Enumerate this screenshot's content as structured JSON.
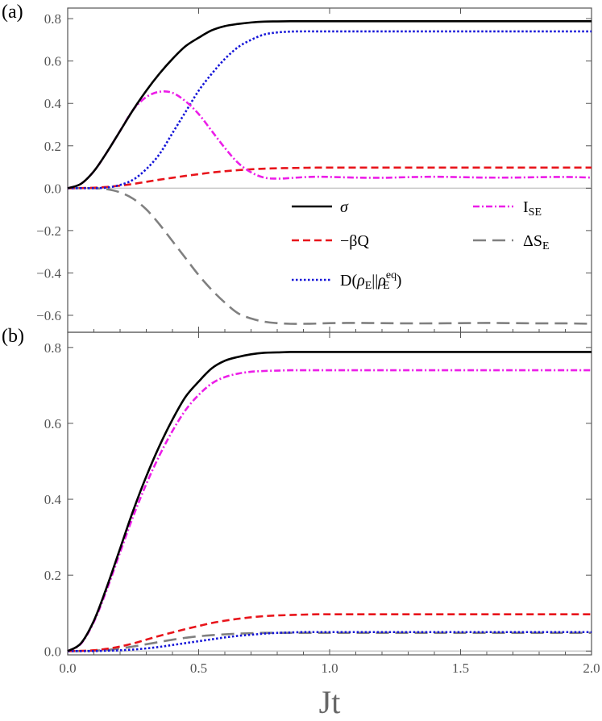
{
  "chart_data": [
    {
      "type": "line",
      "panel_label": "(a)",
      "xlim": [
        0,
        2.0
      ],
      "ylim": [
        -0.68,
        0.85
      ],
      "yticks": [
        -0.6,
        -0.4,
        -0.2,
        0.0,
        0.2,
        0.4,
        0.6,
        0.8
      ],
      "ytick_labels": [
        "−0.6",
        "−0.4",
        "−0.2",
        "0.0",
        "0.2",
        "0.4",
        "0.6",
        "0.8"
      ],
      "xticks": [
        0.0,
        0.5,
        1.0,
        1.5,
        2.0
      ],
      "x": [
        0,
        0.05,
        0.1,
        0.15,
        0.2,
        0.25,
        0.3,
        0.35,
        0.4,
        0.45,
        0.5,
        0.55,
        0.6,
        0.65,
        0.7,
        0.75,
        0.8,
        0.85,
        0.9,
        0.95,
        1.0,
        1.1,
        1.2,
        1.3,
        1.4,
        1.5,
        1.6,
        1.7,
        1.8,
        1.9,
        2.0
      ],
      "series": [
        {
          "key": "sigma",
          "name": "σ",
          "color": "#000000",
          "dash": "",
          "values": [
            0,
            0.02,
            0.08,
            0.17,
            0.27,
            0.37,
            0.46,
            0.54,
            0.61,
            0.67,
            0.71,
            0.745,
            0.765,
            0.775,
            0.782,
            0.786,
            0.787,
            0.788,
            0.788,
            0.788,
            0.788,
            0.788,
            0.788,
            0.788,
            0.788,
            0.788,
            0.788,
            0.788,
            0.788,
            0.788,
            0.788
          ]
        },
        {
          "key": "beta_q",
          "name": "−βQ",
          "color": "#e8141b",
          "dash": "9,5",
          "values": [
            0,
            0.0005,
            0.002,
            0.006,
            0.012,
            0.02,
            0.03,
            0.04,
            0.049,
            0.058,
            0.066,
            0.074,
            0.08,
            0.085,
            0.089,
            0.092,
            0.094,
            0.095,
            0.096,
            0.097,
            0.097,
            0.097,
            0.097,
            0.097,
            0.097,
            0.097,
            0.097,
            0.097,
            0.097,
            0.097,
            0.097
          ]
        },
        {
          "key": "ise",
          "name": "I",
          "sub": "SE",
          "color": "#ec1ee8",
          "dash": "8,3,2,3",
          "values": [
            0,
            0.02,
            0.08,
            0.17,
            0.27,
            0.37,
            0.43,
            0.455,
            0.45,
            0.41,
            0.35,
            0.27,
            0.19,
            0.12,
            0.075,
            0.05,
            0.045,
            0.048,
            0.052,
            0.054,
            0.053,
            0.05,
            0.049,
            0.052,
            0.054,
            0.052,
            0.05,
            0.05,
            0.052,
            0.053,
            0.05
          ]
        },
        {
          "key": "delta_se",
          "name": "ΔS",
          "sub": "E",
          "color": "#808080",
          "dash": "16,8",
          "values": [
            0,
            0,
            0,
            -0.005,
            -0.02,
            -0.05,
            -0.1,
            -0.17,
            -0.25,
            -0.33,
            -0.41,
            -0.48,
            -0.54,
            -0.59,
            -0.615,
            -0.63,
            -0.637,
            -0.64,
            -0.64,
            -0.639,
            -0.637,
            -0.636,
            -0.637,
            -0.638,
            -0.638,
            -0.637,
            -0.636,
            -0.637,
            -0.638,
            -0.638,
            -0.64
          ]
        },
        {
          "key": "d_rel",
          "name": "D(ρE||ρEeq)",
          "color": "#1414d8",
          "dash": "2.5,2.5",
          "values": [
            0,
            0,
            0,
            0.003,
            0.015,
            0.04,
            0.09,
            0.16,
            0.26,
            0.36,
            0.46,
            0.54,
            0.61,
            0.665,
            0.7,
            0.725,
            0.735,
            0.739,
            0.74,
            0.74,
            0.74,
            0.74,
            0.74,
            0.74,
            0.74,
            0.74,
            0.74,
            0.74,
            0.74,
            0.74,
            0.74
          ]
        }
      ]
    },
    {
      "type": "line",
      "panel_label": "(b)",
      "xlim": [
        0,
        2.0
      ],
      "ylim": [
        -0.01,
        0.84
      ],
      "yticks": [
        0.0,
        0.2,
        0.4,
        0.6,
        0.8
      ],
      "ytick_labels": [
        "0.0",
        "0.2",
        "0.4",
        "0.6",
        "0.8"
      ],
      "xticks": [
        0.0,
        0.5,
        1.0,
        1.5,
        2.0
      ],
      "xtick_labels": [
        "0.0",
        "0.5",
        "1.0",
        "1.5",
        "2.0"
      ],
      "xlabel": "Jt",
      "x": [
        0,
        0.05,
        0.1,
        0.15,
        0.2,
        0.25,
        0.3,
        0.35,
        0.4,
        0.45,
        0.5,
        0.55,
        0.6,
        0.65,
        0.7,
        0.75,
        0.8,
        0.85,
        0.9,
        0.95,
        1.0,
        1.1,
        1.2,
        1.3,
        1.4,
        1.5,
        1.6,
        1.7,
        1.8,
        1.9,
        2.0
      ],
      "series": [
        {
          "key": "sigma",
          "name": "σ",
          "color": "#000000",
          "dash": "",
          "values": [
            0,
            0.02,
            0.08,
            0.17,
            0.27,
            0.37,
            0.46,
            0.54,
            0.61,
            0.67,
            0.71,
            0.745,
            0.765,
            0.775,
            0.782,
            0.786,
            0.787,
            0.788,
            0.788,
            0.788,
            0.788,
            0.788,
            0.788,
            0.788,
            0.788,
            0.788,
            0.788,
            0.788,
            0.788,
            0.788,
            0.788
          ]
        },
        {
          "key": "beta_q",
          "name": "−βQ",
          "color": "#e8141b",
          "dash": "9,5",
          "values": [
            0,
            0.0005,
            0.002,
            0.006,
            0.012,
            0.02,
            0.03,
            0.04,
            0.049,
            0.058,
            0.066,
            0.074,
            0.08,
            0.085,
            0.089,
            0.092,
            0.094,
            0.095,
            0.096,
            0.097,
            0.097,
            0.097,
            0.097,
            0.097,
            0.097,
            0.097,
            0.097,
            0.097,
            0.097,
            0.097,
            0.097
          ]
        },
        {
          "key": "ise",
          "name": "I",
          "sub": "SE",
          "color": "#ec1ee8",
          "dash": "8,3,2,3",
          "values": [
            0,
            0.019,
            0.077,
            0.163,
            0.26,
            0.355,
            0.44,
            0.515,
            0.58,
            0.635,
            0.675,
            0.705,
            0.722,
            0.731,
            0.736,
            0.738,
            0.739,
            0.74,
            0.74,
            0.74,
            0.74,
            0.74,
            0.74,
            0.74,
            0.74,
            0.74,
            0.74,
            0.74,
            0.74,
            0.74,
            0.74
          ]
        },
        {
          "key": "delta_se",
          "name": "ΔS",
          "sub": "E",
          "color": "#808080",
          "dash": "16,8",
          "values": [
            0,
            0,
            0.001,
            0.003,
            0.007,
            0.012,
            0.018,
            0.024,
            0.03,
            0.035,
            0.039,
            0.042,
            0.044,
            0.046,
            0.047,
            0.048,
            0.048,
            0.048,
            0.048,
            0.048,
            0.048,
            0.048,
            0.048,
            0.048,
            0.048,
            0.048,
            0.048,
            0.048,
            0.048,
            0.048,
            0.048
          ]
        },
        {
          "key": "d_rel",
          "name": "D(ρE||ρEeq)",
          "color": "#1414d8",
          "dash": "2.5,2.5",
          "values": [
            0,
            0,
            0,
            0.001,
            0.002,
            0.004,
            0.007,
            0.011,
            0.016,
            0.021,
            0.026,
            0.031,
            0.036,
            0.04,
            0.043,
            0.046,
            0.048,
            0.049,
            0.05,
            0.05,
            0.05,
            0.05,
            0.05,
            0.05,
            0.05,
            0.05,
            0.05,
            0.05,
            0.05,
            0.05,
            0.05
          ]
        }
      ]
    }
  ],
  "legend": {
    "sigma": "σ",
    "beta_q": "−βQ",
    "d_prefix": "D(",
    "rho": "ρ",
    "sub_e": "E",
    "sep": "||",
    "sup_eq": "eq",
    "close": ")",
    "ise_main": "I",
    "ise_sub": "SE",
    "dse_main": "ΔS",
    "dse_sub": "E"
  }
}
